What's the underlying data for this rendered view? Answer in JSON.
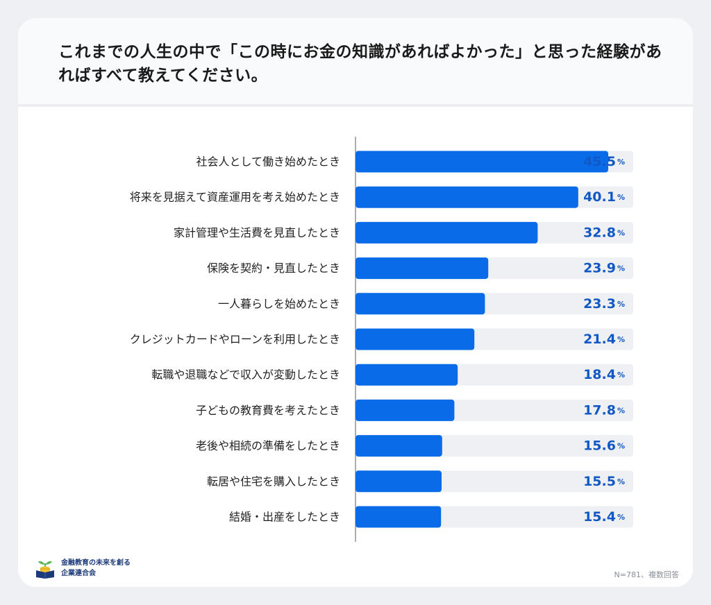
{
  "title": "これまでの人生の中で「この時にお金の知識があればよかった」と思った経験があればすべて教えてください。",
  "footer": {
    "org_line1": "金融教育の未来を創る",
    "org_line2": "企業連合会",
    "note": "N=781、複数回答"
  },
  "colors": {
    "bar": "#0a6be8",
    "track": "#eef0f3",
    "value_text": "#1258c4"
  },
  "chart_data": {
    "type": "bar",
    "orientation": "horizontal",
    "value_suffix": "%",
    "xlim": [
      0,
      50
    ],
    "categories": [
      "社会人として働き始めたとき",
      "将来を見据えて資産運用を考え始めたとき",
      "家計管理や生活費を見直したとき",
      "保険を契約・見直したとき",
      "一人暮らしを始めたとき",
      "クレジットカードやローンを利用したとき",
      "転職や退職などで収入が変動したとき",
      "子どもの教育費を考えたとき",
      "老後や相続の準備をしたとき",
      "転居や住宅を購入したとき",
      "結婚・出産をしたとき"
    ],
    "values": [
      45.5,
      40.1,
      32.8,
      23.9,
      23.3,
      21.4,
      18.4,
      17.8,
      15.6,
      15.5,
      15.4
    ]
  }
}
